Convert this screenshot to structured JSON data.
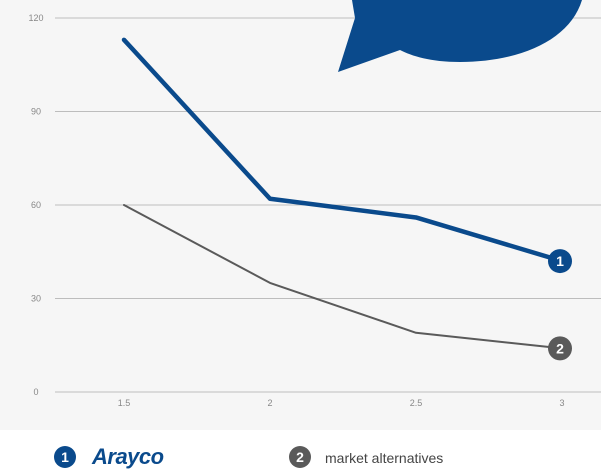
{
  "chart_data": {
    "type": "line",
    "x": [
      1.5,
      2,
      2.5,
      3
    ],
    "xticks": [
      "1.5",
      "2",
      "2.5",
      "3"
    ],
    "yticks": [
      "0",
      "30",
      "60",
      "90",
      "120"
    ],
    "ylim": [
      0,
      120
    ],
    "xlim": [
      1.5,
      3
    ],
    "grid": true,
    "series": [
      {
        "name": "Arayco",
        "marker_label": "1",
        "values": [
          113,
          62,
          56,
          42
        ],
        "color": "#0a4a8c"
      },
      {
        "name": "market alternatives",
        "marker_label": "2",
        "values": [
          60,
          35,
          19,
          14
        ],
        "color": "#5a5a5a"
      }
    ],
    "decoration_color": "#0a4a8c"
  },
  "legend": {
    "item1": {
      "badge": "1",
      "logo_text": "Arayco"
    },
    "item2": {
      "badge": "2",
      "label": "market alternatives"
    }
  }
}
